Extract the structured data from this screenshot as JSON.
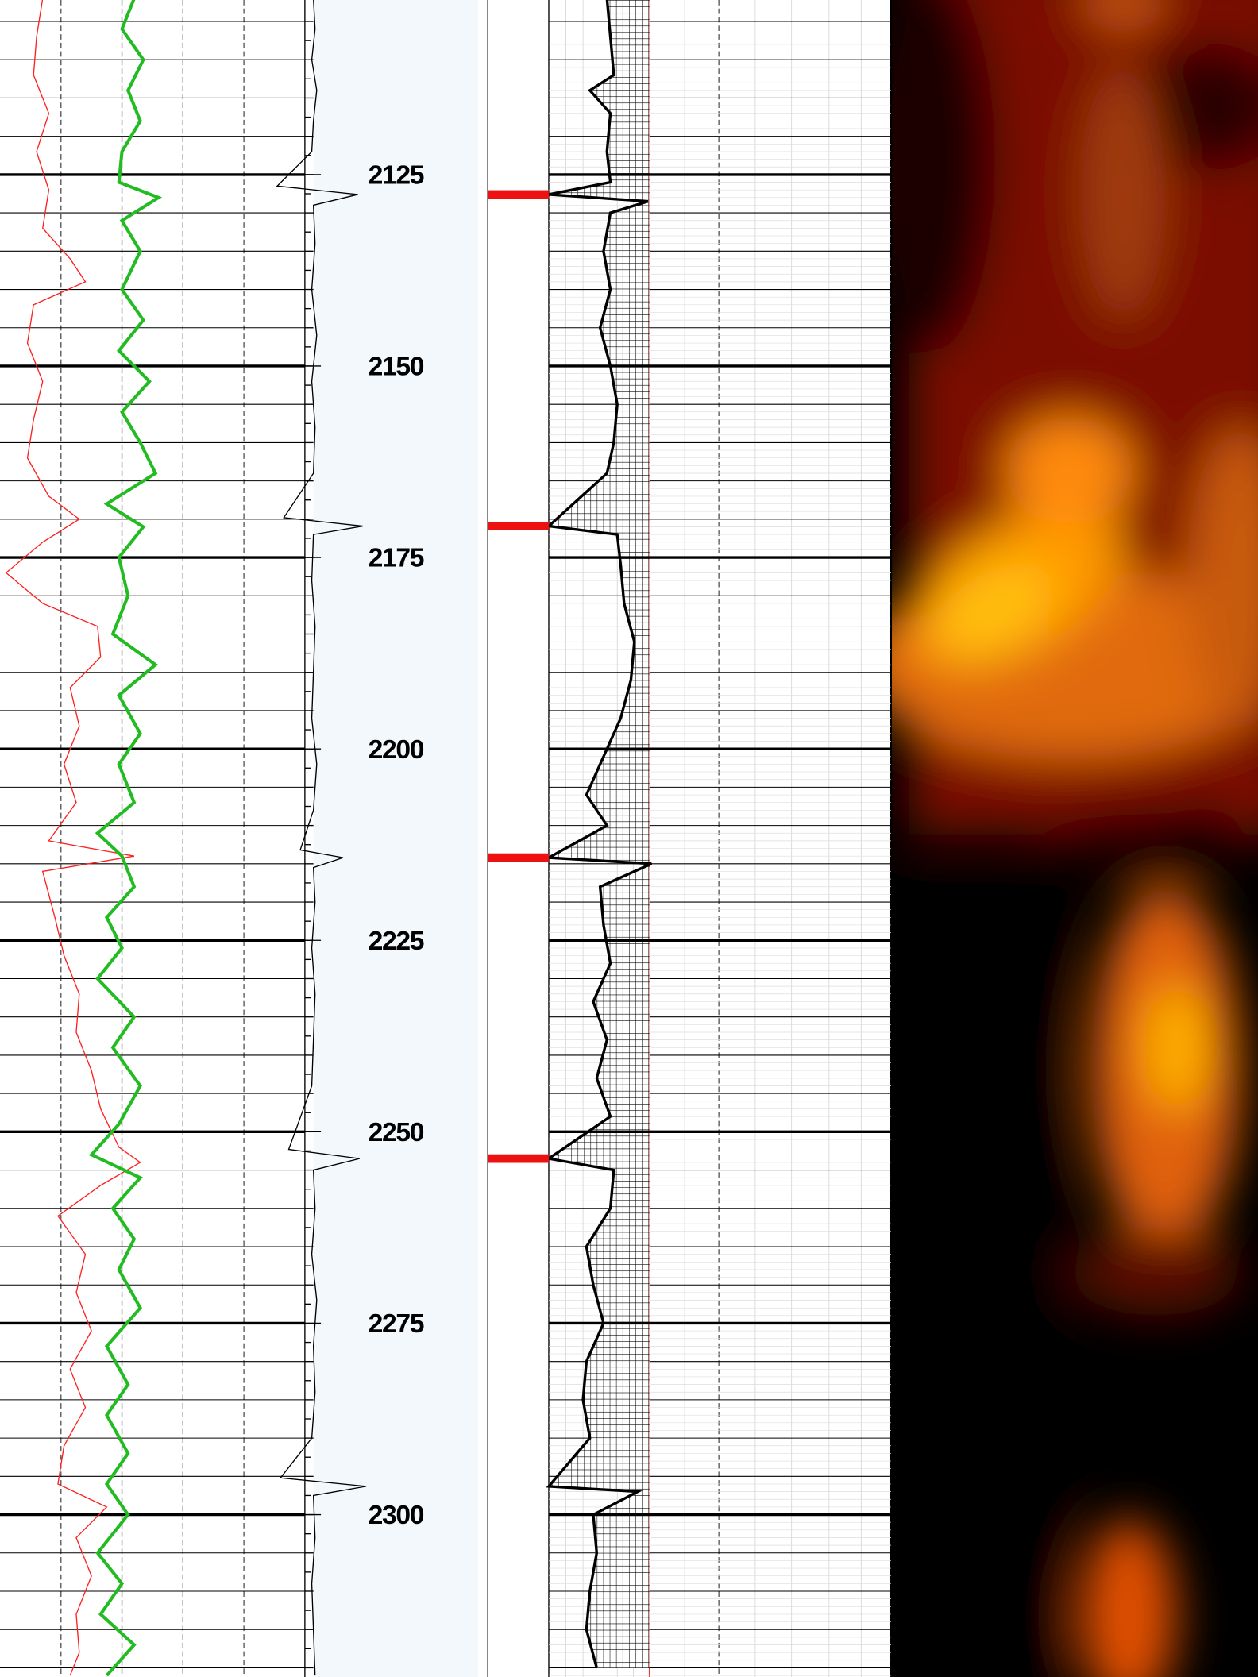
{
  "chart_data": {
    "type": "well-log",
    "ylim": [
      2102.2,
      2321.2
    ],
    "yticks": [
      2125,
      2150,
      2175,
      2200,
      2225,
      2250,
      2275,
      2300
    ],
    "xlim": [
      0,
      100
    ],
    "markers": [
      2127.6,
      2170.9,
      2214.2,
      2253.5
    ],
    "series": [
      {
        "color": "#ff2020",
        "x": [
          2102,
          2107,
          2112,
          2117,
          2122,
          2127,
          2132,
          2136,
          2139,
          2142,
          2147,
          2152,
          2157,
          2162,
          2167,
          2170,
          2173,
          2177,
          2181,
          2184,
          2188,
          2192,
          2197,
          2202,
          2207,
          2212,
          2214,
          2216,
          2222,
          2227,
          2232,
          2237,
          2242,
          2247,
          2252,
          2254,
          2257,
          2261,
          2266,
          2271,
          2276,
          2281,
          2286,
          2291,
          2296,
          2299,
          2303,
          2308,
          2313,
          2318,
          2321
        ],
        "values": [
          14,
          12,
          11,
          16,
          12,
          16,
          14,
          23,
          28,
          11,
          9,
          14,
          11,
          9,
          16,
          26,
          14,
          2,
          14,
          32,
          33,
          23,
          26,
          21,
          25,
          16,
          44,
          14,
          18,
          21,
          26,
          25,
          30,
          33,
          39,
          46,
          33,
          19,
          28,
          25,
          30,
          23,
          28,
          21,
          19,
          35,
          25,
          30,
          25,
          26,
          23
        ]
      },
      {
        "color": "#22bb22",
        "x": [
          2102,
          2106,
          2110,
          2114,
          2118,
          2122,
          2126,
          2128,
          2131,
          2135,
          2140,
          2144,
          2148,
          2152,
          2156,
          2160,
          2164,
          2168,
          2171,
          2175,
          2180,
          2185,
          2189,
          2193,
          2198,
          2202,
          2207,
          2211,
          2214,
          2218,
          2222,
          2226,
          2230,
          2235,
          2239,
          2244,
          2249,
          2253,
          2256,
          2260,
          2264,
          2268,
          2273,
          2278,
          2283,
          2287,
          2292,
          2296,
          2300,
          2305,
          2309,
          2313,
          2317,
          2321
        ],
        "values": [
          44,
          40,
          47,
          42,
          46,
          40,
          39,
          52,
          40,
          46,
          40,
          47,
          39,
          49,
          40,
          46,
          51,
          35,
          47,
          39,
          42,
          37,
          51,
          39,
          46,
          39,
          44,
          32,
          40,
          44,
          35,
          40,
          32,
          44,
          37,
          46,
          39,
          30,
          46,
          37,
          44,
          39,
          46,
          35,
          42,
          35,
          42,
          35,
          42,
          32,
          40,
          33,
          44,
          35
        ]
      },
      {
        "color": "#000000",
        "x": [
          2102,
          2106,
          2110,
          2114,
          2118,
          2122,
          2126.5,
          2127.6,
          2129,
          2134,
          2140,
          2146,
          2152,
          2158,
          2164,
          2169.8,
          2170.9,
          2172,
          2178,
          2184,
          2190,
          2196,
          2202,
          2208,
          2213.2,
          2214.2,
          2215.5,
          2220,
          2226,
          2232,
          2238,
          2244,
          2252.3,
          2253.5,
          2255,
          2260,
          2266,
          2272,
          2278,
          2284,
          2290,
          2295.2,
          2296.3,
          2297.5,
          2303,
          2309,
          2315,
          2321
        ],
        "values": [
          0,
          1,
          -1,
          2,
          0,
          -1,
          -22,
          27,
          0,
          1,
          -1,
          2,
          -1,
          1,
          0,
          -18,
          30,
          0,
          -1,
          1,
          0,
          -1,
          2,
          0,
          -8,
          18,
          0,
          1,
          -1,
          1,
          0,
          -1,
          -15,
          28,
          0,
          1,
          -1,
          2,
          0,
          1,
          -1,
          -20,
          32,
          0,
          1,
          -1,
          0,
          1
        ]
      },
      {
        "color": "#000000",
        "x": [
          2102,
          2107,
          2112,
          2114,
          2117,
          2122,
          2126,
          2127.6,
          2128.5,
          2130,
          2135,
          2140,
          2145,
          2150,
          2155,
          2160,
          2164,
          2170.9,
          2172,
          2176,
          2181,
          2186,
          2191,
          2196,
          2201,
          2206,
          2210,
          2214.2,
          2215,
          2218,
          2223,
          2228,
          2233,
          2238,
          2243,
          2248,
          2253.5,
          2255,
          2260,
          2265,
          2270,
          2275,
          2280,
          2285,
          2290,
          2296.3,
          2297,
          2300,
          2305,
          2310,
          2315,
          2320
        ],
        "values": [
          17,
          18,
          19,
          12,
          18,
          17,
          18,
          0,
          29,
          18,
          16,
          18,
          15,
          18,
          20,
          19,
          17,
          0,
          20,
          21,
          22,
          25,
          24,
          21,
          16,
          11,
          17,
          0,
          30,
          15,
          16,
          18,
          13,
          17,
          14,
          18,
          0,
          19,
          18,
          11,
          13,
          16,
          11,
          10,
          12,
          0,
          26,
          13,
          14,
          12,
          11,
          14
        ]
      }
    ]
  }
}
